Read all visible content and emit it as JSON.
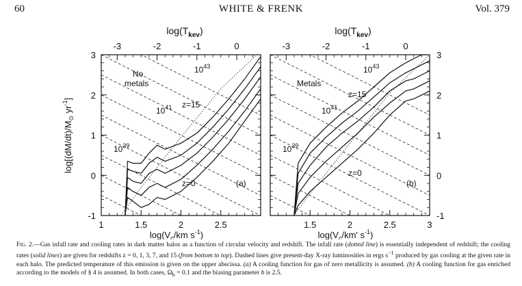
{
  "header": {
    "page_number": "60",
    "running_title": "WHITE & FRENK",
    "volume": "Vol. 379"
  },
  "axes": {
    "top_label": "log(T",
    "top_label_sub": "kev",
    "top_label_close": ")",
    "y_label": "log[(dM/dt)/M",
    "y_label_sub": "⊙",
    "y_label_rest": " yr",
    "y_label_sup": "-1",
    "y_label_close": "]",
    "x_label_left": "log(V",
    "x_label_left_sub": "c",
    "x_label_left_rest": "/km s",
    "x_label_left_sup": "-1",
    "x_label_left_close": ")",
    "x_label_right": "log(V",
    "x_label_right_sub": "c",
    "x_label_right_rest": "/km' s",
    "x_label_right_sup": "-1",
    "x_label_right_close": ")",
    "y_ticks": [
      "3",
      "2",
      "1",
      "0",
      "-1"
    ],
    "right_y_ticks": [
      "3",
      "2",
      "1",
      "0",
      "-1"
    ],
    "bottom_ticks_left": [
      "1",
      "1.5",
      "2",
      "2.5"
    ],
    "bottom_ticks_right": [
      "1.5",
      "2",
      "2.5",
      "3"
    ],
    "top_ticks": [
      "-3",
      "-2",
      "-1",
      "0"
    ]
  },
  "panels": [
    {
      "id": "a",
      "panel_label": "(a)",
      "metal_label_line1": "No",
      "metal_label_line2": "metals",
      "redshift_high": "z=15",
      "redshift_low": "z=0",
      "lum_labels": [
        {
          "base": "10",
          "exp": "43"
        },
        {
          "base": "10",
          "exp": "41"
        },
        {
          "base": "10",
          "exp": "39"
        }
      ]
    },
    {
      "id": "b",
      "panel_label": "(b)",
      "metal_label_line1": "Metals",
      "metal_label_line2": "",
      "redshift_high": "z=15",
      "redshift_low": "z=0",
      "lum_labels": [
        {
          "base": "10",
          "exp": "43"
        },
        {
          "base": "10",
          "exp": "41"
        },
        {
          "base": "10",
          "exp": "39"
        }
      ]
    }
  ],
  "chart_data": [
    {
      "type": "line",
      "panel": "(a)",
      "x_range": [
        1.0,
        3.0
      ],
      "y_range": [
        -1,
        3
      ],
      "top_axis_range": [
        -3,
        0
      ],
      "series": [
        {
          "style": "dotted",
          "x": [
            1.25,
            1.5,
            2.0,
            2.5,
            2.95
          ],
          "y": [
            -1.0,
            -0.3,
            0.95,
            2.15,
            3.0
          ]
        },
        {
          "style": "solid",
          "x": [
            1.3,
            1.33,
            1.4,
            1.5,
            1.6,
            1.7,
            1.8,
            2.0,
            2.2,
            2.4,
            2.6,
            2.8,
            3.0
          ],
          "y": [
            -1.0,
            -0.55,
            -0.65,
            -0.8,
            -0.72,
            -0.55,
            -0.6,
            -0.4,
            -0.05,
            0.35,
            0.8,
            1.35,
            1.9
          ]
        },
        {
          "style": "solid",
          "x": [
            1.3,
            1.33,
            1.4,
            1.5,
            1.6,
            1.7,
            1.8,
            2.0,
            2.2,
            2.4,
            2.6,
            2.8,
            3.0
          ],
          "y": [
            -1.0,
            -0.3,
            -0.4,
            -0.5,
            -0.3,
            -0.2,
            -0.3,
            -0.1,
            0.25,
            0.65,
            1.1,
            1.6,
            2.15
          ]
        },
        {
          "style": "solid",
          "x": [
            1.3,
            1.33,
            1.4,
            1.5,
            1.6,
            1.7,
            1.8,
            2.0,
            2.2,
            2.4,
            2.6,
            2.8,
            3.0
          ],
          "y": [
            -1.0,
            -0.05,
            -0.15,
            -0.2,
            0.05,
            0.15,
            0.05,
            0.25,
            0.55,
            0.95,
            1.4,
            1.9,
            2.45
          ]
        },
        {
          "style": "solid",
          "x": [
            1.3,
            1.33,
            1.4,
            1.5,
            1.6,
            1.7,
            1.8,
            2.0,
            2.2,
            2.4,
            2.6,
            2.8,
            3.0
          ],
          "y": [
            -1.0,
            0.15,
            0.1,
            0.05,
            0.3,
            0.45,
            0.35,
            0.5,
            0.8,
            1.2,
            1.65,
            2.15,
            2.7
          ]
        },
        {
          "style": "solid",
          "x": [
            1.3,
            1.33,
            1.4,
            1.5,
            1.6,
            1.7,
            1.8,
            2.0,
            2.2,
            2.4,
            2.6,
            2.8,
            3.0
          ],
          "y": [
            -1.0,
            0.35,
            0.3,
            0.3,
            0.55,
            0.75,
            0.65,
            0.8,
            1.05,
            1.45,
            1.9,
            2.4,
            2.95
          ]
        }
      ]
    },
    {
      "type": "line",
      "panel": "(b)",
      "x_range": [
        1.0,
        3.0
      ],
      "y_range": [
        -1,
        3
      ],
      "top_axis_range": [
        -3,
        0
      ],
      "series": [
        {
          "style": "dotted",
          "x": [
            1.3,
            1.5,
            2.0,
            2.5,
            3.0
          ],
          "y": [
            -1.0,
            -0.45,
            0.8,
            2.05,
            3.0
          ]
        },
        {
          "style": "solid",
          "x": [
            1.3,
            1.35,
            1.5,
            1.7,
            1.9,
            2.1,
            2.3,
            2.5,
            2.7,
            2.8,
            2.9,
            3.0
          ],
          "y": [
            -1.0,
            -0.75,
            -0.4,
            -0.05,
            0.3,
            0.65,
            1.05,
            1.5,
            1.85,
            1.9,
            2.0,
            2.1
          ]
        },
        {
          "style": "solid",
          "x": [
            1.3,
            1.35,
            1.5,
            1.7,
            1.9,
            2.1,
            2.3,
            2.5,
            2.7,
            2.8,
            2.9,
            3.0
          ],
          "y": [
            -1.0,
            -0.45,
            -0.05,
            0.35,
            0.7,
            1.05,
            1.45,
            1.8,
            2.1,
            2.15,
            2.25,
            2.35
          ]
        },
        {
          "style": "solid",
          "x": [
            1.3,
            1.35,
            1.5,
            1.7,
            1.9,
            2.1,
            2.3,
            2.5,
            2.7,
            2.8,
            2.9,
            3.0
          ],
          "y": [
            -1.0,
            -0.2,
            0.25,
            0.7,
            1.05,
            1.35,
            1.7,
            2.1,
            2.35,
            2.4,
            2.5,
            2.6
          ]
        },
        {
          "style": "solid",
          "x": [
            1.3,
            1.35,
            1.5,
            1.7,
            1.9,
            2.1,
            2.3,
            2.5,
            2.7,
            2.8,
            2.9,
            3.0
          ],
          "y": [
            -1.0,
            0.05,
            0.55,
            0.95,
            1.3,
            1.6,
            1.95,
            2.3,
            2.55,
            2.65,
            2.75,
            2.85
          ]
        },
        {
          "style": "solid",
          "x": [
            1.3,
            1.35,
            1.5,
            1.7,
            1.9,
            2.1,
            2.3,
            2.5,
            2.7,
            2.8,
            2.9,
            3.0
          ],
          "y": [
            -1.0,
            0.3,
            0.8,
            1.2,
            1.55,
            1.85,
            2.2,
            2.55,
            2.8,
            2.9,
            3.0,
            3.0
          ]
        }
      ]
    }
  ],
  "caption": {
    "label": "Fig. 2.",
    "text_1": "—Gas infall rate and cooling rates in dark matter halos as a function of circular velocity and redshift. The infall rate (",
    "em_1": "dotted line",
    "text_2": ") is essentially independent of redshift; the cooling rates (",
    "em_2": "solid lines",
    "text_3": ") are given for redshifts z = 0, 1, 3, 7, and 15 (",
    "em_3": "from bottom to top",
    "text_4": "). Dashed lines give present-day X-ray luminosities in ergs s",
    "sup_1": "−1",
    "text_5": " produced by gas cooling at the given rate in each halo. The predicted temperature of this emission is given on the upper abscissa. ",
    "em_4": "(a)",
    "text_6": " A cooling function for gas of zero metallicity is assumed. ",
    "em_5": "(b)",
    "text_7": " A cooling function for gas enriched according to the models of § 4 is assumed. In both cases, Ω",
    "sub_1": "b",
    "text_8": " = 0.1 and the biasing parameter ",
    "em_6": "b",
    "text_9": " is 2.5."
  }
}
